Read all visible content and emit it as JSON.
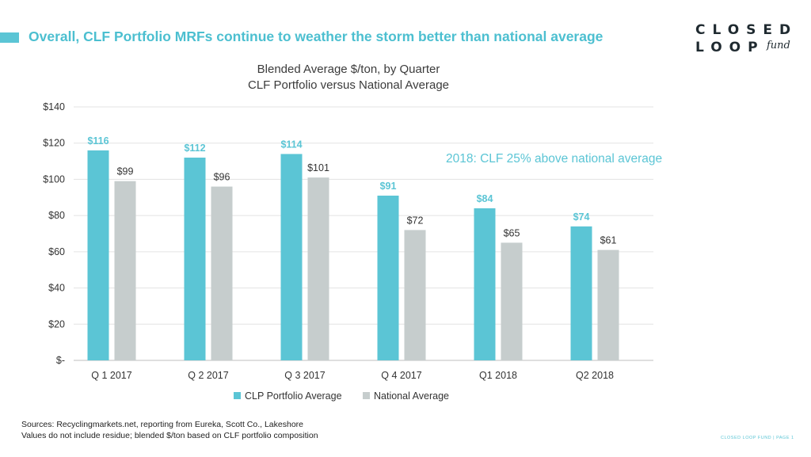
{
  "header": {
    "headline": "Overall, CLF Portfolio MRFs continue to weather the storm better than national average"
  },
  "logo": {
    "row1": "CLOSED",
    "row2": "LOOP",
    "fund": "fund"
  },
  "colors": {
    "accent": "#5bc5d5",
    "clp": "#5bc5d5",
    "national": "#c6cdcd"
  },
  "chart_data": {
    "type": "bar",
    "title": "Blended Average $/ton, by Quarter",
    "subtitle": "CLF Portfolio versus National Average",
    "categories": [
      "Q 1 2017",
      "Q 2 2017",
      "Q 3 2017",
      "Q 4 2017",
      "Q1 2018",
      "Q2 2018"
    ],
    "series": [
      {
        "name": "CLP Portfolio Average",
        "values": [
          116,
          112,
          114,
          91,
          84,
          74
        ],
        "labels": [
          "$116",
          "$112",
          "$114",
          "$91",
          "$84",
          "$74"
        ]
      },
      {
        "name": "National Average",
        "values": [
          99,
          96,
          101,
          72,
          65,
          61
        ],
        "labels": [
          "$99",
          "$96",
          "$101",
          "$72",
          "$65",
          "$61"
        ]
      }
    ],
    "ylim": [
      0,
      140
    ],
    "yticks": [
      0,
      20,
      40,
      60,
      80,
      100,
      120,
      140
    ],
    "ytick_labels": [
      "$-",
      "$20",
      "$40",
      "$60",
      "$80",
      "$100",
      "$120",
      "$140"
    ],
    "grid": true,
    "legend": "bottom",
    "annotation": "2018: CLF 25% above national average"
  },
  "footnotes": [
    "Sources: Recyclingmarkets.net, reporting from Eureka, Scott Co., Lakeshore",
    "Values do not include residue; blended $/ton based on CLF portfolio composition"
  ],
  "page_footer": "CLOSED LOOP FUND  |  PAGE 1"
}
